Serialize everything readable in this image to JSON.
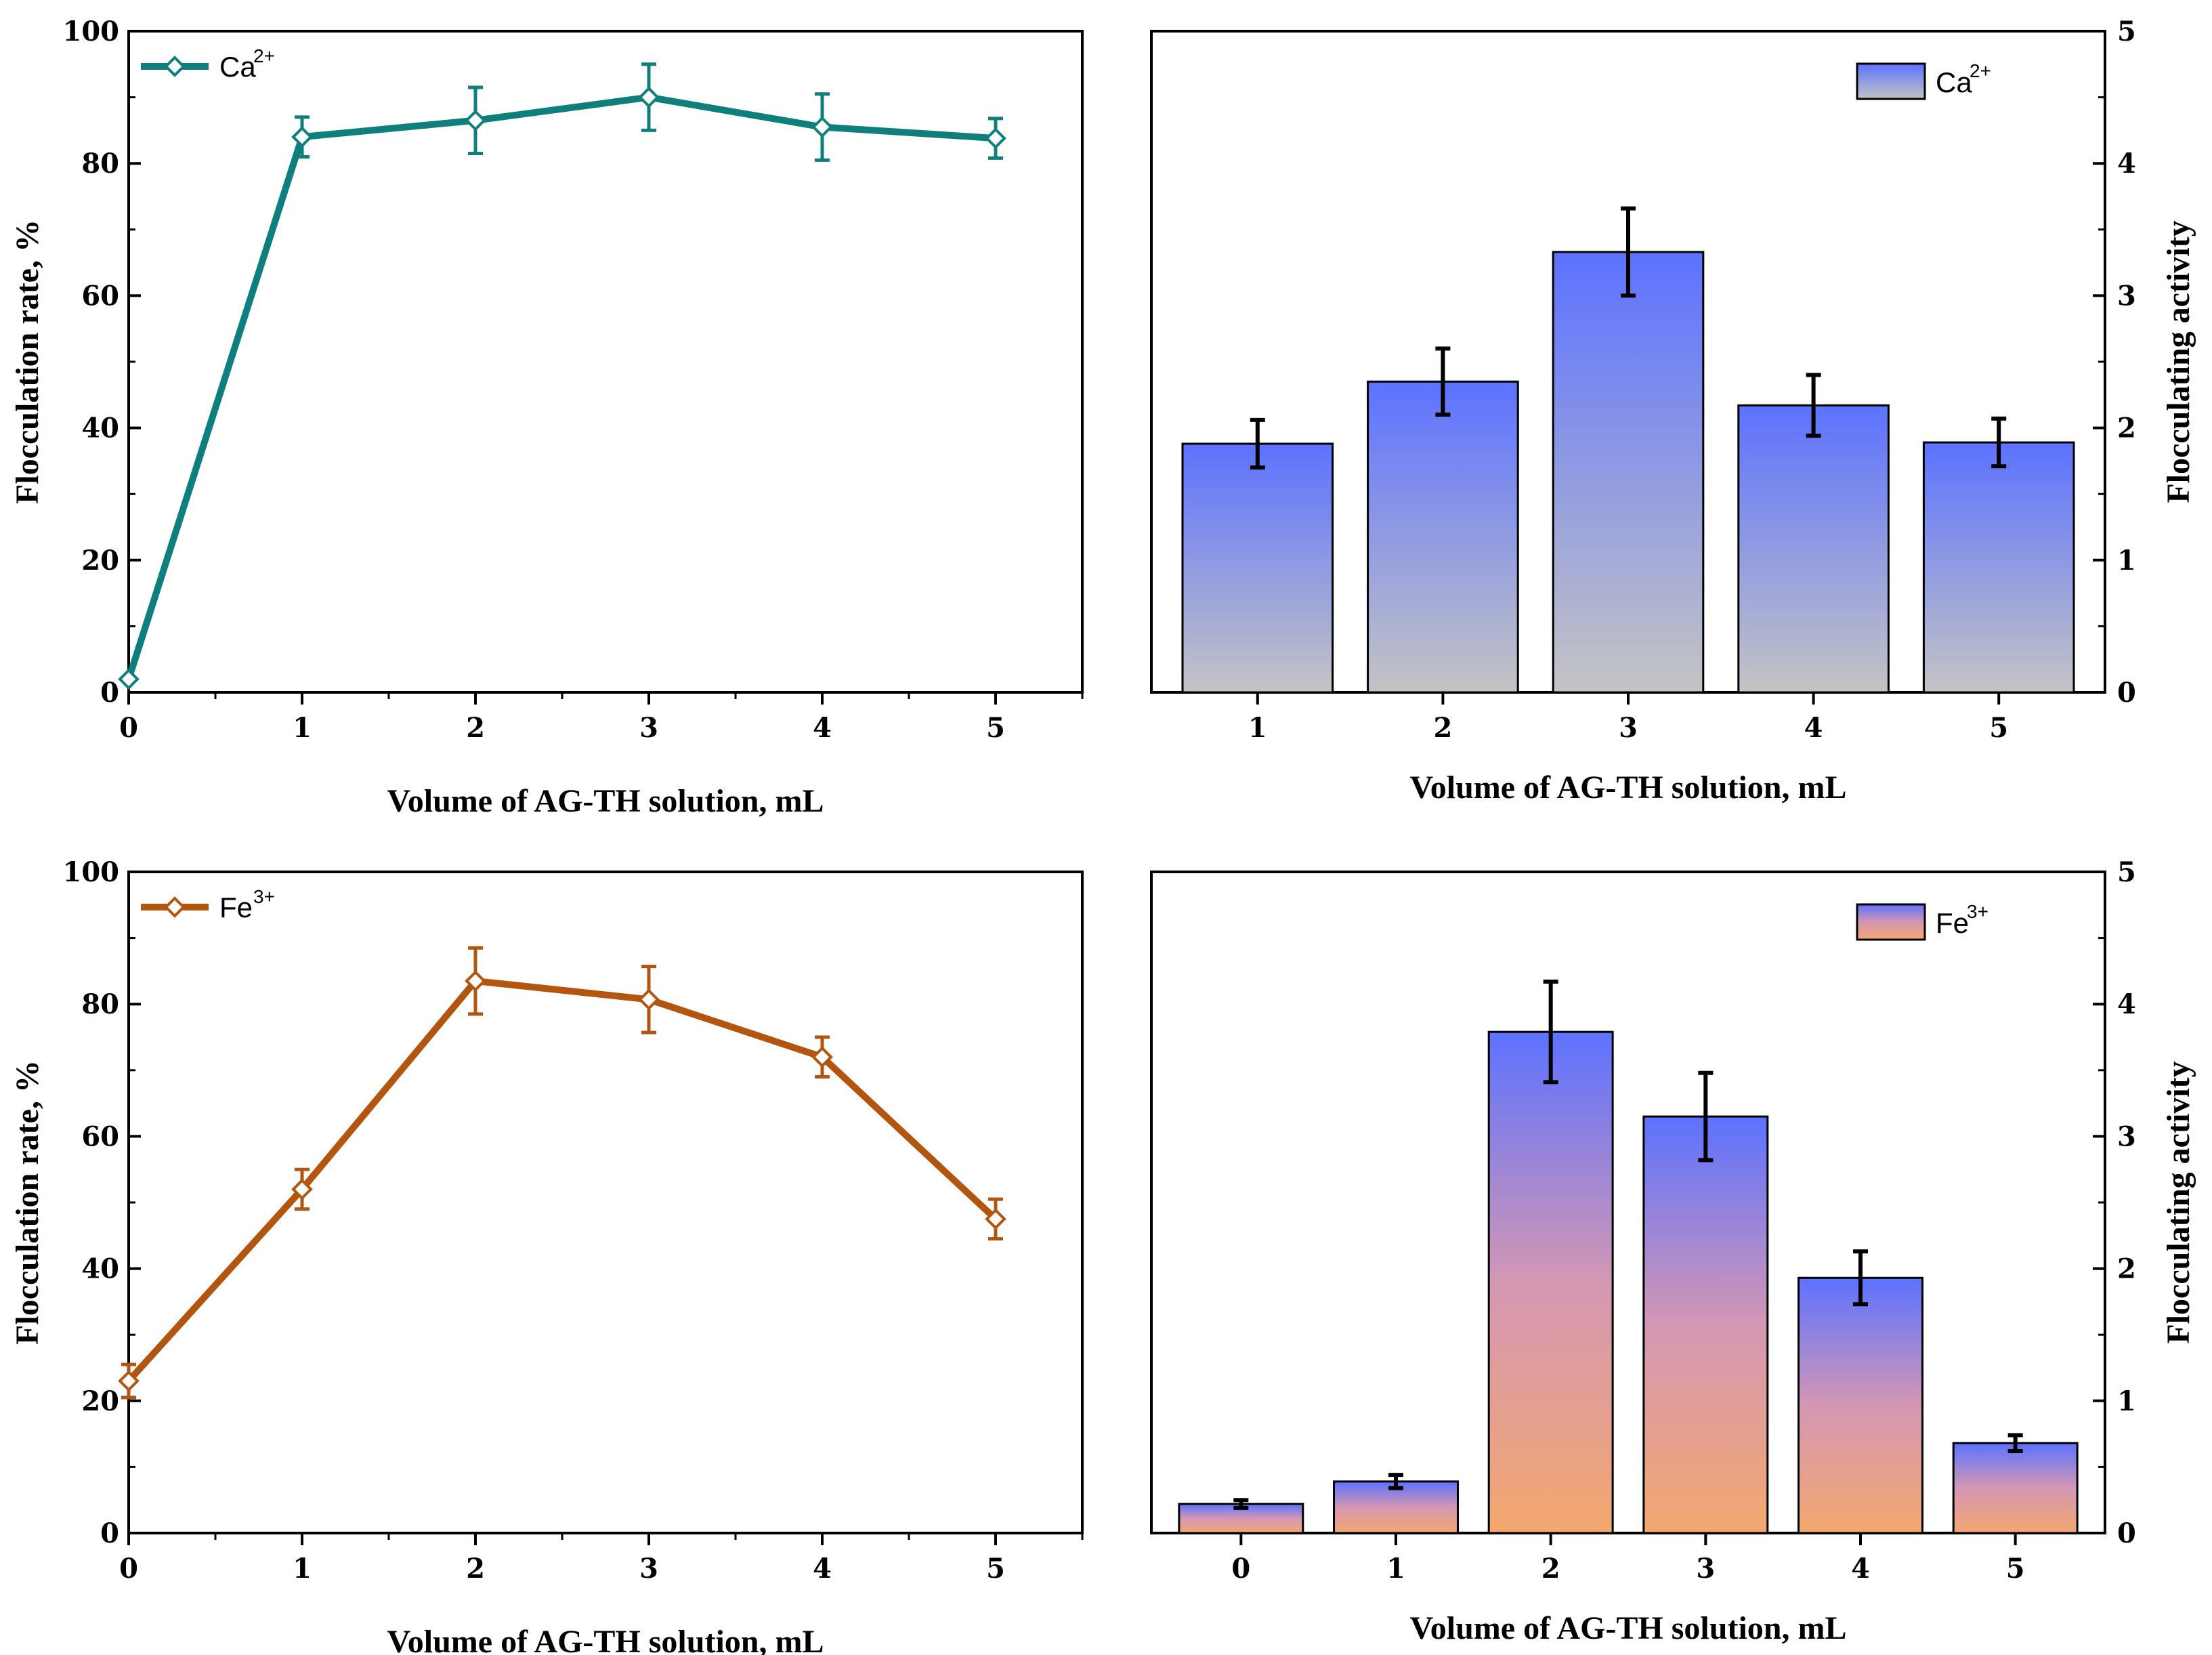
{
  "chart_data": [
    {
      "id": "ca-rate",
      "type": "line",
      "series": [
        {
          "name": "Ca",
          "ion_sup": "2+",
          "color": "#0e7f7c",
          "x": [
            0,
            1,
            2,
            3,
            4,
            5
          ],
          "values": [
            2,
            84,
            86.5,
            90,
            85.5,
            83.8
          ],
          "errors": [
            0,
            3,
            5,
            5,
            5,
            3
          ]
        }
      ],
      "ylabel": "Flocculation rate, %",
      "xlabel": "Volume of AG-TH solution, mL",
      "xlim": [
        0,
        5.5
      ],
      "ylim": [
        0,
        100
      ],
      "xticks": [
        "0",
        "1",
        "2",
        "3",
        "4",
        "5"
      ],
      "yticks": [
        "0",
        "20",
        "40",
        "60",
        "80",
        "100"
      ],
      "legend_position": "top-left",
      "grid": false
    },
    {
      "id": "ca-activity",
      "type": "bar",
      "categories": [
        "1",
        "2",
        "3",
        "4",
        "5"
      ],
      "series": [
        {
          "name": "Ca",
          "ion_sup": "2+",
          "top_color": "#5c72ff",
          "bottom_color": "#c4c4c4",
          "values": [
            1.88,
            2.35,
            3.33,
            2.17,
            1.89
          ],
          "errors": [
            0.18,
            0.25,
            0.33,
            0.23,
            0.18
          ]
        }
      ],
      "ylabel": "Flocculating activity",
      "xlabel": "Volume of AG-TH solution, mL",
      "ylim": [
        0,
        5
      ],
      "yticks": [
        "0",
        "1",
        "2",
        "3",
        "4",
        "5"
      ],
      "y_axis_side": "right",
      "legend_position": "top-right",
      "grid": false
    },
    {
      "id": "fe-rate",
      "type": "line",
      "series": [
        {
          "name": "Fe",
          "ion_sup": "3+",
          "color": "#b4550f",
          "x": [
            0,
            1,
            2,
            3,
            4,
            5
          ],
          "values": [
            23,
            52,
            83.5,
            80.7,
            72,
            47.5
          ],
          "errors": [
            2.5,
            3,
            5,
            5,
            3,
            3
          ]
        }
      ],
      "ylabel": "Flocculation rate, %",
      "xlabel": "Volume of AG-TH solution, mL",
      "xlim": [
        0,
        5.5
      ],
      "ylim": [
        0,
        100
      ],
      "xticks": [
        "0",
        "1",
        "2",
        "3",
        "4",
        "5"
      ],
      "yticks": [
        "0",
        "20",
        "40",
        "60",
        "80",
        "100"
      ],
      "legend_position": "top-left",
      "grid": false
    },
    {
      "id": "fe-activity",
      "type": "bar",
      "categories": [
        "0",
        "1",
        "2",
        "3",
        "4",
        "5"
      ],
      "series": [
        {
          "name": "Fe",
          "ion_sup": "3+",
          "top_color": "#5c72ff",
          "bottom_color": "#f4a86e",
          "values": [
            0.22,
            0.39,
            3.79,
            3.15,
            1.93,
            0.68
          ],
          "errors": [
            0.03,
            0.05,
            0.38,
            0.33,
            0.2,
            0.06
          ]
        }
      ],
      "ylabel": "Flocculating activity",
      "xlabel": "Volume of AG-TH solution, mL",
      "ylim": [
        0,
        5
      ],
      "yticks": [
        "0",
        "1",
        "2",
        "3",
        "4",
        "5"
      ],
      "y_axis_side": "right",
      "legend_position": "top-right",
      "grid": false
    }
  ]
}
